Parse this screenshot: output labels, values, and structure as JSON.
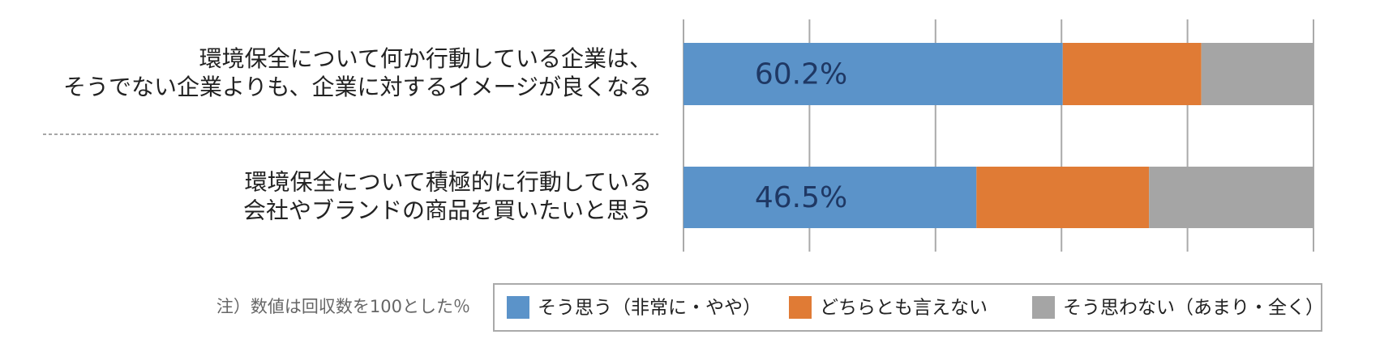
{
  "chart_data": {
    "type": "stacked-barh",
    "categories": [
      "環境保全について何か行動している企業は、\nそうでない企業よりも、企業に対するイメージが良くなる",
      "環境保全について積極的に行動している\n会社やブランドの商品を買いたいと思う"
    ],
    "series": [
      {
        "name": "そう思う（非常に・やや）",
        "color": "#5b93c9",
        "values": [
          60.2,
          46.5
        ],
        "value_labels": [
          "60.2%",
          "46.5%"
        ]
      },
      {
        "name": "どちらとも言えない",
        "color": "#e07b35",
        "values": [
          22.0,
          27.4
        ]
      },
      {
        "name": "そう思わない（あまり・全く）",
        "color": "#a5a5a5",
        "values": [
          17.8,
          26.1
        ]
      }
    ],
    "xlim": [
      0,
      100
    ],
    "xticks": [
      0,
      20,
      40,
      60,
      80,
      100
    ],
    "grid": true,
    "annotation": "注）数値は回収数を100とした％"
  }
}
